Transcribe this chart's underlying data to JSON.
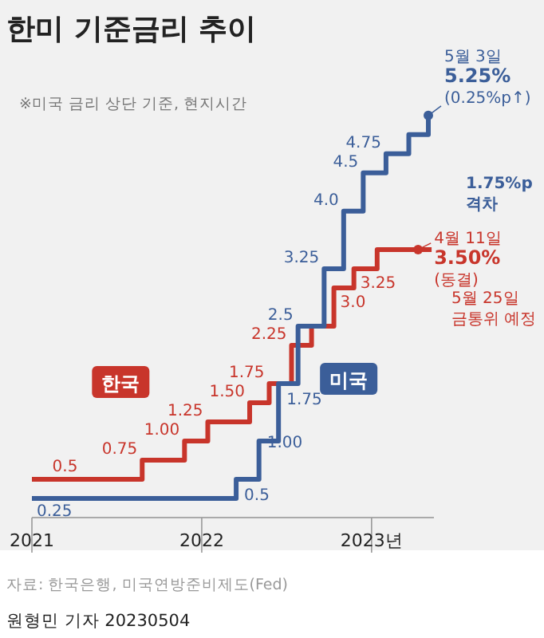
{
  "chart_data": {
    "type": "step",
    "title": "한미 기준금리 추이",
    "subtitle": "※미국 금리 상단 기준, 현지시간",
    "xlim": [
      "2021-01-01",
      "2023-05-15"
    ],
    "xticks": [
      {
        "value": "2021-01-01",
        "label": "2021"
      },
      {
        "value": "2022-01-01",
        "label": "2022"
      },
      {
        "value": "2023-01-01",
        "label": "2023년"
      }
    ],
    "tick_labels": "x",
    "series": [
      {
        "name": "한국",
        "color": "#c8352b",
        "x": [
          "2021-01-01",
          "2021-08-26",
          "2021-11-25",
          "2022-01-14",
          "2022-04-14",
          "2022-05-26",
          "2022-07-13",
          "2022-08-25",
          "2022-10-12",
          "2022-11-24",
          "2023-01-13",
          "2023-04-11",
          "2023-05-10"
        ],
        "values": [
          0.5,
          0.75,
          1.0,
          1.25,
          1.5,
          1.75,
          2.25,
          2.5,
          3.0,
          3.25,
          3.5,
          3.5,
          3.5
        ],
        "value_labels": [
          "0.5",
          "0.75",
          "1.00",
          "1.25",
          "1.50",
          "1.75",
          "2.25",
          null,
          "3.0",
          "3.25",
          null,
          null,
          null
        ]
      },
      {
        "name": "미국",
        "color": "#3b5e99",
        "x": [
          "2021-01-01",
          "2022-03-16",
          "2022-05-04",
          "2022-06-15",
          "2022-07-27",
          "2022-09-21",
          "2022-11-02",
          "2022-12-14",
          "2023-02-01",
          "2023-03-22",
          "2023-05-03"
        ],
        "values": [
          0.25,
          0.5,
          1.0,
          1.75,
          2.5,
          3.25,
          4.0,
          4.5,
          4.75,
          5.0,
          5.25
        ],
        "value_labels": [
          "0.25",
          "0.5",
          "1.00",
          "1.75",
          "2.5",
          "3.25",
          "4.0",
          "4.5",
          "4.75",
          null,
          null
        ]
      }
    ],
    "annotations": [
      {
        "text": "5월 3일\n5.25%\n(0.25%p↑)",
        "x": "2023-05-03",
        "y": 5.25
      },
      {
        "text": "4월 11일\n3.50%\n(동결)",
        "x": "2023-04-11",
        "y": 3.5
      },
      "1.75%p\n격차",
      "5월 25일\n금통위 예정",
      "자료: 한국은행, 미국연방준비제도(Fed)",
      "원형민 기자 20230504"
    ]
  }
}
